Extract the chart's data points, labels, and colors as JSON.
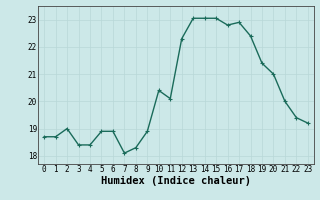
{
  "xlabel": "Humidex (Indice chaleur)",
  "x": [
    0,
    1,
    2,
    3,
    4,
    5,
    6,
    7,
    8,
    9,
    10,
    11,
    12,
    13,
    14,
    15,
    16,
    17,
    18,
    19,
    20,
    21,
    22,
    23
  ],
  "y": [
    18.7,
    18.7,
    19.0,
    18.4,
    18.4,
    18.9,
    18.9,
    18.1,
    18.3,
    18.9,
    20.4,
    20.1,
    22.3,
    23.05,
    23.05,
    23.05,
    22.8,
    22.9,
    22.4,
    21.4,
    21.0,
    20.0,
    19.4,
    19.2
  ],
  "line_color": "#1a6b5a",
  "marker": "+",
  "marker_size": 3,
  "bg_color": "#cce8e8",
  "grid_color": "#b8d8d8",
  "ylim": [
    17.7,
    23.5
  ],
  "yticks": [
    18,
    19,
    20,
    21,
    22,
    23
  ],
  "xlim": [
    -0.5,
    23.5
  ],
  "xticks": [
    0,
    1,
    2,
    3,
    4,
    5,
    6,
    7,
    8,
    9,
    10,
    11,
    12,
    13,
    14,
    15,
    16,
    17,
    18,
    19,
    20,
    21,
    22,
    23
  ],
  "tick_fontsize": 5.5,
  "xlabel_fontsize": 7.5,
  "line_width": 1.0
}
